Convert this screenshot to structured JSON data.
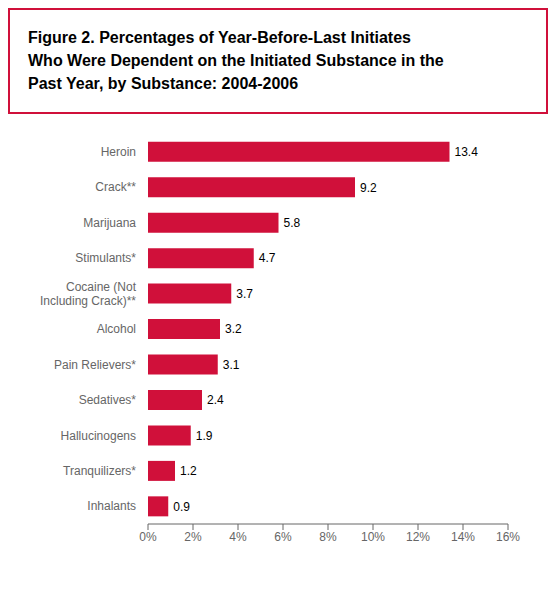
{
  "chart_data": {
    "type": "bar",
    "title": "Figure 2. Percentages of Year-Before-Last Initiates\nWho Were Dependent on the Initiated Substance in the\nPast Year, by Substance: 2004-2006",
    "categories": [
      "Inhalants",
      "Tranquilizers*",
      "Hallucinogens",
      "Sedatives*",
      "Pain Relievers*",
      "Alcohol",
      "Cocaine (Not\nIncluding Crack)**",
      "Stimulants*",
      "Marijuana",
      "Crack**",
      "Heroin"
    ],
    "values": [
      0.9,
      1.2,
      1.9,
      2.4,
      3.1,
      3.2,
      3.7,
      4.7,
      5.8,
      9.2,
      13.4
    ],
    "color": "#D0103A",
    "orientation": "horizontal",
    "data_labels": true,
    "grid": false,
    "xlim": [
      0,
      16
    ],
    "xticks": [
      {
        "value": 0,
        "label": "0%"
      },
      {
        "value": 2,
        "label": "2%"
      },
      {
        "value": 4,
        "label": "4%"
      },
      {
        "value": 6,
        "label": "6%"
      },
      {
        "value": 8,
        "label": "8%"
      },
      {
        "value": 10,
        "label": "10%"
      },
      {
        "value": 12,
        "label": "12%"
      },
      {
        "value": 14,
        "label": "14%"
      },
      {
        "value": 16,
        "label": "16%"
      }
    ]
  }
}
